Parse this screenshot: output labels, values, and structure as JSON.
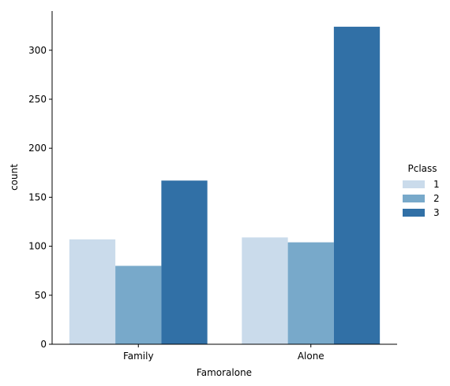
{
  "chart_data": {
    "type": "bar",
    "xlabel": "Famoralone",
    "ylabel": "count",
    "categories": [
      "Family",
      "Alone"
    ],
    "series": [
      {
        "name": "1",
        "values": [
          107,
          109
        ],
        "color": "#cadbeb"
      },
      {
        "name": "2",
        "values": [
          80,
          104
        ],
        "color": "#78a9ca"
      },
      {
        "name": "3",
        "values": [
          167,
          324
        ],
        "color": "#3170a6"
      }
    ],
    "ylim": [
      0,
      340
    ],
    "yticks": [
      0,
      50,
      100,
      150,
      200,
      250,
      300
    ],
    "legend": {
      "title": "Pclass",
      "placement": "right"
    },
    "grid": false
  }
}
